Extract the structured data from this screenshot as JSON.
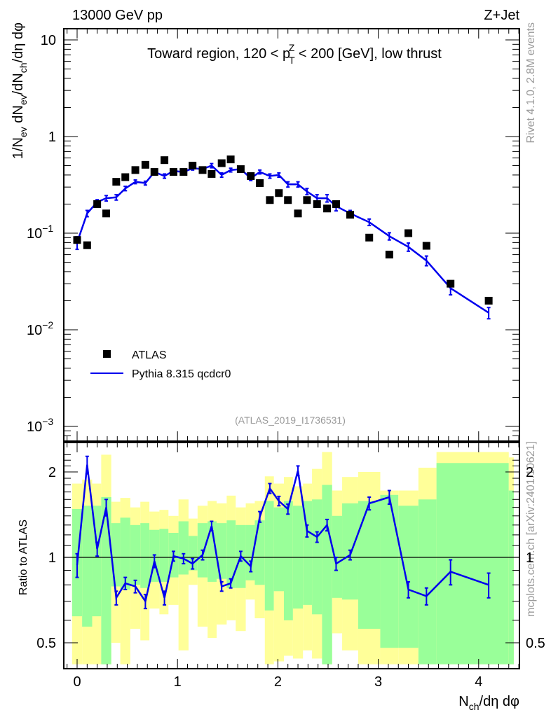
{
  "header": {
    "left": "13000 GeV pp",
    "right": "Z+Jet"
  },
  "side_text": {
    "rivet": "Rivet 4.1.0,  2.8M events",
    "mcplots": "mcplots.cern.ch [arXiv:2401.10621]"
  },
  "chart_data": [
    {
      "type": "scatter",
      "title": "Toward region, 120 < p_T^Z < 200 [GeV], low thrust",
      "title_parts": {
        "prefix": "Toward region, 120 < p",
        "sub": "T",
        "sup": "Z",
        "suffix": " < 200 [GeV], low thrust"
      },
      "ylabel": "1/N_ev dN_ev/dN_ch/dη dφ",
      "ylabel_parts": [
        "1/N",
        "ev",
        " dN",
        "ev",
        "/dN",
        "ch",
        "/dη dφ"
      ],
      "xlabel": "",
      "yscale": "log",
      "ylim": [
        0.0008,
        14
      ],
      "xlim": [
        -0.13,
        4.4
      ],
      "ytick_labels": [
        {
          "value": 10,
          "label": "10"
        },
        {
          "value": 1,
          "label": "1"
        },
        {
          "value": 0.1,
          "label": "10",
          "exp": "−1"
        },
        {
          "value": 0.01,
          "label": "10",
          "exp": "−2"
        },
        {
          "value": 0.001,
          "label": "10",
          "exp": "−3"
        }
      ],
      "analysis_id": "(ATLAS_2019_I1736531)",
      "legend": {
        "placement": "bottom-left",
        "entries": [
          {
            "name": "ATLAS",
            "marker": "square",
            "color": "#000000"
          },
          {
            "name": "Pythia 8.315 qcdcr0",
            "marker": "line",
            "color": "#0000ee"
          }
        ]
      },
      "x": [
        0.0,
        0.1,
        0.2,
        0.29,
        0.39,
        0.48,
        0.58,
        0.68,
        0.77,
        0.87,
        0.96,
        1.06,
        1.15,
        1.25,
        1.34,
        1.44,
        1.53,
        1.63,
        1.73,
        1.82,
        1.92,
        2.01,
        2.1,
        2.2,
        2.29,
        2.39,
        2.49,
        2.58,
        2.72,
        2.91,
        3.11,
        3.3,
        3.48,
        3.72,
        4.1
      ],
      "series": [
        {
          "name": "ATLAS",
          "values": [
            0.085,
            0.075,
            0.2,
            0.16,
            0.34,
            0.38,
            0.45,
            0.51,
            0.43,
            0.57,
            0.43,
            0.43,
            0.5,
            0.45,
            0.41,
            0.53,
            0.58,
            0.46,
            0.39,
            0.33,
            0.22,
            0.26,
            0.22,
            0.16,
            0.22,
            0.2,
            0.18,
            0.2,
            0.155,
            0.09,
            0.06,
            0.1,
            0.074,
            0.03,
            0.02
          ]
        },
        {
          "name": "Pythia 8.315 qcdcr0",
          "values": [
            0.08,
            0.16,
            0.21,
            0.23,
            0.235,
            0.29,
            0.34,
            0.33,
            0.43,
            0.39,
            0.44,
            0.43,
            0.47,
            0.46,
            0.5,
            0.4,
            0.45,
            0.46,
            0.37,
            0.43,
            0.39,
            0.4,
            0.32,
            0.32,
            0.27,
            0.23,
            0.23,
            0.19,
            0.16,
            0.13,
            0.093,
            0.072,
            0.052,
            0.027,
            0.015
          ],
          "errors": [
            0.012,
            0.012,
            0.012,
            0.015,
            0.015,
            0.015,
            0.015,
            0.015,
            0.02,
            0.02,
            0.02,
            0.02,
            0.02,
            0.02,
            0.025,
            0.02,
            0.02,
            0.02,
            0.02,
            0.02,
            0.02,
            0.02,
            0.02,
            0.02,
            0.02,
            0.02,
            0.02,
            0.02,
            0.012,
            0.01,
            0.008,
            0.007,
            0.006,
            0.004,
            0.002
          ]
        }
      ]
    },
    {
      "type": "line",
      "ylabel": "Ratio to ATLAS",
      "xlabel": "N_ch/dη dφ",
      "xlabel_parts": [
        "N",
        "ch",
        "/dη dφ"
      ],
      "yscale": "log",
      "ylim": [
        0.42,
        2.35
      ],
      "xlim": [
        -0.13,
        4.4
      ],
      "xtick_labels": [
        "0",
        "1",
        "2",
        "3",
        "4"
      ],
      "ytick_labels": [
        {
          "value": 2,
          "label": "2"
        },
        {
          "value": 1,
          "label": "1"
        },
        {
          "value": 0.5,
          "label": "0.5"
        }
      ],
      "reference_line": 1,
      "band_colors": {
        "inner": "#99ff99",
        "outer": "#ffff99"
      },
      "bins": [
        {
          "lo": -0.05,
          "hi": 0.05,
          "inner": [
            0.62,
            1.48
          ],
          "outer": [
            0.42,
            1.82
          ]
        },
        {
          "lo": 0.05,
          "hi": 0.15,
          "inner": [
            0.57,
            1.52
          ],
          "outer": [
            0.42,
            1.88
          ]
        },
        {
          "lo": 0.15,
          "hi": 0.24,
          "inner": [
            0.62,
            1.52
          ],
          "outer": [
            0.42,
            1.82
          ]
        },
        {
          "lo": 0.24,
          "hi": 0.34,
          "inner": [
            0.42,
            1.63
          ],
          "outer": [
            0.42,
            2.3
          ]
        },
        {
          "lo": 0.34,
          "hi": 0.43,
          "inner": [
            0.79,
            1.32
          ],
          "outer": [
            0.5,
            1.57
          ]
        },
        {
          "lo": 0.43,
          "hi": 0.53,
          "inner": [
            0.77,
            1.38
          ],
          "outer": [
            0.42,
            1.62
          ]
        },
        {
          "lo": 0.53,
          "hi": 0.63,
          "inner": [
            0.8,
            1.3
          ],
          "outer": [
            0.56,
            1.5
          ]
        },
        {
          "lo": 0.63,
          "hi": 0.72,
          "inner": [
            0.78,
            1.32
          ],
          "outer": [
            0.51,
            1.57
          ]
        },
        {
          "lo": 0.72,
          "hi": 0.82,
          "inner": [
            0.82,
            1.25
          ],
          "outer": [
            0.66,
            1.45
          ]
        },
        {
          "lo": 0.82,
          "hi": 0.91,
          "inner": [
            0.82,
            1.26
          ],
          "outer": [
            0.63,
            1.47
          ]
        },
        {
          "lo": 0.91,
          "hi": 1.01,
          "inner": [
            0.85,
            1.22
          ],
          "outer": [
            0.68,
            1.4
          ]
        },
        {
          "lo": 1.01,
          "hi": 1.11,
          "inner": [
            0.87,
            1.34
          ],
          "outer": [
            0.47,
            1.6
          ]
        },
        {
          "lo": 1.11,
          "hi": 1.2,
          "inner": [
            0.9,
            1.19
          ],
          "outer": [
            0.8,
            1.37
          ]
        },
        {
          "lo": 1.2,
          "hi": 1.3,
          "inner": [
            0.85,
            1.32
          ],
          "outer": [
            0.57,
            1.52
          ]
        },
        {
          "lo": 1.3,
          "hi": 1.39,
          "inner": [
            0.82,
            1.34
          ],
          "outer": [
            0.52,
            1.58
          ]
        },
        {
          "lo": 1.39,
          "hi": 1.49,
          "inner": [
            0.84,
            1.32
          ],
          "outer": [
            0.58,
            1.55
          ]
        },
        {
          "lo": 1.49,
          "hi": 1.58,
          "inner": [
            0.78,
            1.35
          ],
          "outer": [
            0.6,
            1.65
          ]
        },
        {
          "lo": 1.58,
          "hi": 1.68,
          "inner": [
            0.78,
            1.3
          ],
          "outer": [
            0.55,
            1.5
          ]
        },
        {
          "lo": 1.68,
          "hi": 1.77,
          "inner": [
            0.83,
            1.3
          ],
          "outer": [
            0.71,
            1.55
          ]
        },
        {
          "lo": 1.77,
          "hi": 1.87,
          "inner": [
            0.8,
            1.35
          ],
          "outer": [
            0.61,
            1.58
          ]
        },
        {
          "lo": 1.87,
          "hi": 1.96,
          "inner": [
            0.65,
            1.58
          ],
          "outer": [
            0.42,
            1.93
          ]
        },
        {
          "lo": 1.96,
          "hi": 2.06,
          "inner": [
            0.76,
            1.5
          ],
          "outer": [
            0.43,
            1.82
          ]
        },
        {
          "lo": 2.06,
          "hi": 2.15,
          "inner": [
            0.6,
            1.58
          ],
          "outer": [
            0.45,
            1.92
          ]
        },
        {
          "lo": 2.15,
          "hi": 2.25,
          "inner": [
            0.66,
            1.52
          ],
          "outer": [
            0.44,
            1.78
          ]
        },
        {
          "lo": 2.25,
          "hi": 2.34,
          "inner": [
            0.68,
            1.58
          ],
          "outer": [
            0.47,
            1.82
          ]
        },
        {
          "lo": 2.34,
          "hi": 2.44,
          "inner": [
            0.63,
            1.6
          ],
          "outer": [
            0.44,
            2.05
          ]
        },
        {
          "lo": 2.44,
          "hi": 2.54,
          "inner": [
            0.42,
            1.8
          ],
          "outer": [
            0.42,
            2.35
          ]
        },
        {
          "lo": 2.54,
          "hi": 2.64,
          "inner": [
            0.72,
            1.4
          ],
          "outer": [
            0.54,
            1.72
          ]
        },
        {
          "lo": 2.64,
          "hi": 2.8,
          "inner": [
            0.71,
            1.55
          ],
          "outer": [
            0.47,
            1.92
          ]
        },
        {
          "lo": 2.8,
          "hi": 3.02,
          "inner": [
            0.56,
            1.58
          ],
          "outer": [
            0.42,
            2.0
          ]
        },
        {
          "lo": 3.02,
          "hi": 3.2,
          "inner": [
            0.48,
            1.66
          ],
          "outer": [
            0.42,
            1.72
          ]
        },
        {
          "lo": 3.2,
          "hi": 3.4,
          "inner": [
            0.48,
            1.52
          ],
          "outer": [
            0.42,
            1.72
          ]
        },
        {
          "lo": 3.4,
          "hi": 3.58,
          "inner": [
            0.42,
            1.6
          ],
          "outer": [
            0.42,
            2.07
          ]
        },
        {
          "lo": 3.58,
          "hi": 4.3,
          "inner": [
            0.42,
            2.15
          ],
          "outer": [
            0.42,
            2.35
          ]
        },
        {
          "lo": 4.3,
          "hi": 4.35,
          "inner": [
            0.42,
            1.72
          ],
          "outer": [
            0.42,
            2.25
          ]
        }
      ],
      "series": [
        {
          "name": "Pythia 8.315 qcdcr0 / ATLAS",
          "x": [
            0.0,
            0.1,
            0.2,
            0.29,
            0.39,
            0.48,
            0.58,
            0.68,
            0.77,
            0.87,
            0.96,
            1.06,
            1.15,
            1.25,
            1.34,
            1.44,
            1.53,
            1.63,
            1.73,
            1.82,
            1.92,
            2.01,
            2.1,
            2.2,
            2.29,
            2.39,
            2.49,
            2.58,
            2.72,
            2.91,
            3.11,
            3.3,
            3.48,
            3.72,
            4.1
          ],
          "values": [
            0.94,
            2.12,
            1.07,
            1.5,
            0.72,
            0.81,
            0.79,
            0.7,
            0.97,
            0.72,
            1.01,
            0.99,
            0.95,
            1.02,
            1.29,
            0.79,
            0.81,
            1.01,
            0.93,
            1.39,
            1.75,
            1.58,
            1.48,
            2.02,
            1.24,
            1.18,
            1.3,
            0.95,
            1.02,
            1.55,
            1.63,
            0.77,
            0.73,
            0.89,
            0.8
          ],
          "errors": [
            0.09,
            0.15,
            0.06,
            0.1,
            0.04,
            0.04,
            0.04,
            0.04,
            0.05,
            0.04,
            0.04,
            0.04,
            0.04,
            0.04,
            0.05,
            0.03,
            0.03,
            0.04,
            0.04,
            0.06,
            0.07,
            0.06,
            0.06,
            0.08,
            0.06,
            0.05,
            0.06,
            0.05,
            0.04,
            0.08,
            0.09,
            0.05,
            0.05,
            0.09,
            0.08
          ]
        }
      ]
    }
  ]
}
